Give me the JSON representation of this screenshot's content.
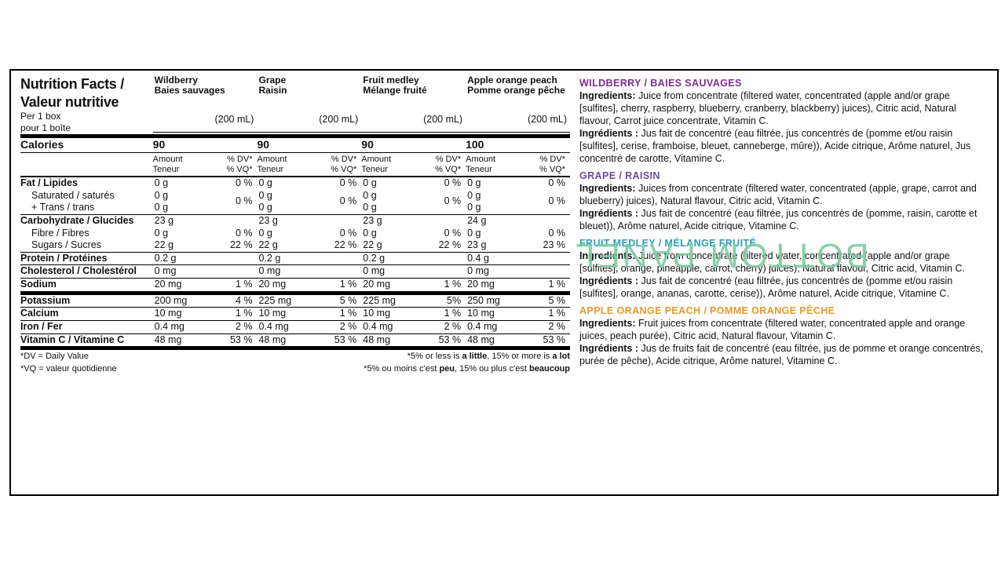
{
  "watermark": "BOTTOM PANEL",
  "nutrition": {
    "title": "Nutrition Facts / Valeur nutritive",
    "serving_en": "Per 1 box",
    "serving_fr": "pour 1 boîte",
    "volume": "(200 mL)",
    "products": [
      {
        "en": "Wildberry",
        "fr": "Baies sauvages"
      },
      {
        "en": "Grape",
        "fr": "Raisin"
      },
      {
        "en": "Fruit medley",
        "fr": "Mélange fruité"
      },
      {
        "en": "Apple orange peach",
        "fr": "Pomme orange pêche"
      }
    ],
    "calories_label": "Calories",
    "calories": [
      "90",
      "90",
      "90",
      "100"
    ],
    "col_amount_en": "Amount",
    "col_amount_fr": "Teneur",
    "col_dv_en": "% DV*",
    "col_dv_fr": "% VQ*",
    "rows": [
      {
        "label": "Fat / Lipides",
        "rule": "med",
        "amts": [
          "0 g",
          "0 g",
          "0 g",
          "0 g"
        ],
        "dvs": [
          "0 %",
          "0 %",
          "0 %",
          "0 %"
        ]
      },
      {
        "label": "Saturated / saturés",
        "indent": true,
        "amts": [
          "0 g",
          "0 g",
          "0 g",
          "0 g"
        ],
        "dvs": [
          "0 %",
          "0 %",
          "0 %",
          "0 %"
        ],
        "dvrowspan": 2
      },
      {
        "label": "+ Trans / trans",
        "indent": true,
        "amts": [
          "0 g",
          "0 g",
          "0 g",
          "0 g"
        ]
      },
      {
        "label": "Carbohydrate / Glucides",
        "rule": "thin",
        "amts": [
          "23 g",
          "23 g",
          "23 g",
          "24 g"
        ],
        "dvs": [
          "",
          "",
          "",
          ""
        ]
      },
      {
        "label": "Fibre / Fibres",
        "indent": true,
        "amts": [
          "0 g",
          "0 g",
          "0 g",
          "0 g"
        ],
        "dvs": [
          "0 %",
          "0 %",
          "0 %",
          "0 %"
        ]
      },
      {
        "label": "Sugars / Sucres",
        "indent": true,
        "amts": [
          "22 g",
          "22 g",
          "22 g",
          "23 g"
        ],
        "dvs": [
          "22 %",
          "22 %",
          "22 %",
          "23 %"
        ]
      },
      {
        "label": "Protein / Protéines",
        "rule": "thin",
        "amts": [
          "0.2 g",
          "0.2 g",
          "0.2 g",
          "0.4 g"
        ],
        "dvs": [
          "",
          "",
          "",
          ""
        ]
      },
      {
        "label": "Cholesterol / Cholestérol",
        "rule": "thin",
        "amts": [
          "0 mg",
          "0 mg",
          "0 mg",
          "0 mg"
        ],
        "dvs": [
          "",
          "",
          "",
          ""
        ]
      },
      {
        "label": "Sodium",
        "rule": "thin",
        "amts": [
          "20 mg",
          "20 mg",
          "20 mg",
          "20 mg"
        ],
        "dvs": [
          "1 %",
          "1 %",
          "1 %",
          "1 %"
        ]
      },
      {
        "label": "Potassium",
        "rule": "thick",
        "amts": [
          "200 mg",
          "225 mg",
          "225 mg",
          "250 mg"
        ],
        "dvs": [
          "4 %",
          "5 %",
          "5%",
          "5 %"
        ]
      },
      {
        "label": "Calcium",
        "rule": "thin",
        "amts": [
          "10 mg",
          "10 mg",
          "10 mg",
          "10 mg"
        ],
        "dvs": [
          "1 %",
          "1 %",
          "1 %",
          "1 %"
        ]
      },
      {
        "label": "Iron / Fer",
        "rule": "thin",
        "amts": [
          "0.4 mg",
          "0.4 mg",
          "0.4 mg",
          "0.4 mg"
        ],
        "dvs": [
          "2 %",
          "2 %",
          "2 %",
          "2 %"
        ]
      },
      {
        "label": "Vitamin C / Vitamine C",
        "rule": "thin",
        "amts": [
          "48 mg",
          "48 mg",
          "48 mg",
          "48 mg"
        ],
        "dvs": [
          "53 %",
          "53 %",
          "53 %",
          "53 %"
        ]
      }
    ],
    "foot_dv": "*DV = Daily Value",
    "foot_vq": "*VQ = valeur quotidienne",
    "foot_guide_en_pre": "*5% or less is ",
    "foot_guide_en_a": "a little",
    "foot_guide_en_mid": ", 15% or more is ",
    "foot_guide_en_b": "a lot",
    "foot_guide_fr_pre": "*5% ou moins c'est ",
    "foot_guide_fr_a": "peu",
    "foot_guide_fr_mid": ", 15% ou plus c'est ",
    "foot_guide_fr_b": "beaucoup"
  },
  "ingredients": [
    {
      "color": "#7b2e8c",
      "title": "WILDBERRY / BAIES SAUVAGES",
      "en": "Juice from concentrate (filtered water, concentrated (apple and/or grape [sulfites], cherry, raspberry, blueberry, cranberry, blackberry) juices), Citric acid, Natural flavour, Carrot juice concentrate, Vitamin C.",
      "fr": "Jus fait de concentré (eau filtrée, jus concentrés de (pomme et/ou raisin [sulfites], cerise, framboise, bleuet, canneberge, mûre)), Acide citrique, Arôme naturel, Jus concentré de carotte, Vitamine C."
    },
    {
      "color": "#6a4a9c",
      "title": "GRAPE / RAISIN",
      "en": "Juices from concentrate (filtered water, concentrated (apple, grape, carrot and blueberry) juices), Natural flavour, Citric acid, Vitamin C.",
      "fr": "Jus fait de concentré (eau filtrée, jus concentrés de (pomme, raisin, carotte et bleuet)), Arôme naturel, Acide citrique, Vitamine C."
    },
    {
      "color": "#2e9bb8",
      "title": "FRUIT MEDLEY / MÉLANGE FRUITÉ",
      "en": "Juice from concentrate (filtered water, concentrated (apple and/or grape [sulfites], orange, pineapple, carrot, cherry) juices), Natural flavour, Citric acid, Vitamin C.",
      "fr": "Jus fait de concentré (eau filtrée, jus concentrés de (pomme et/ou raisin [sulfites], orange, ananas, carotte, cerise)), Arôme naturel, Acide citrique, Vitamine C."
    },
    {
      "color": "#e69a2b",
      "title": "APPLE ORANGE PEACH / POMME ORANGE PÊCHE",
      "en": "Fruit juices from concentrate (filtered water, concentrated apple and orange juices, peach purée), Citric acid, Natural flavour, Vitamin C.",
      "fr": "Jus de fruits fait de concentré (eau filtrée, jus de pomme et orange concentrés, purée de pêche), Acide citrique, Arôme naturel, Vitamine C."
    }
  ],
  "lbl_ing_en": "Ingredients:",
  "lbl_ing_fr": "Ingrédients :"
}
